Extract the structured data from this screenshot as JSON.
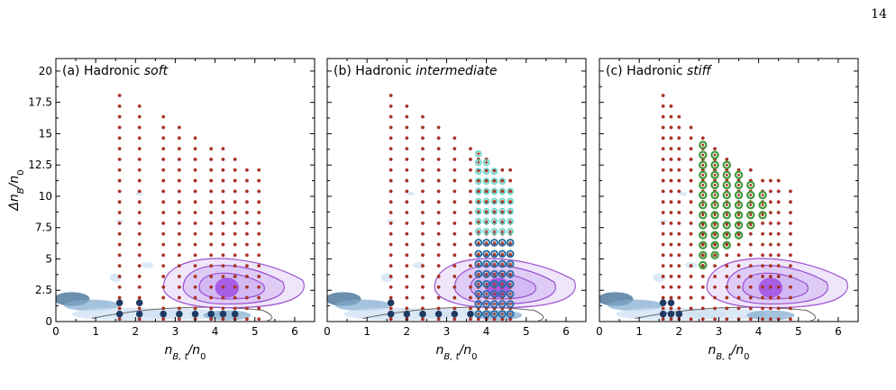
{
  "page_number": "14",
  "colors": {
    "tov_point": "#a83224",
    "hist_light": "#cfe2f3",
    "hist_dark": "#2c5f8a",
    "contour_purple": "#9b4fd0",
    "fill_purple": "#c7a6ef",
    "core_purple": "#9a3fe0",
    "marker_cyan": "#5fd3c7",
    "marker_blue": "#2e6fa5",
    "marker_green": "#3f9a3a",
    "marker_navy": "#1f3b63",
    "gray_contour": "#666666"
  },
  "chart_data": [
    {
      "type": "scatter",
      "panel": "a",
      "title_prefix": "(a) Hadronic ",
      "title_em": "soft",
      "xlabel": "n_{B,t}/n_0",
      "ylabel": "Δn_B/n_0",
      "xlim": [
        0,
        6.5
      ],
      "ylim": [
        0,
        21
      ],
      "xticks": [
        0,
        1,
        2,
        3,
        4,
        5,
        6
      ],
      "yticks": [
        0,
        2.5,
        5,
        7.5,
        10,
        12.5,
        15,
        17.5,
        20
      ],
      "ytick_labels": [
        "0",
        "2.5",
        "5",
        "7.5",
        "10",
        "12.5",
        "15",
        "17.5",
        "20"
      ],
      "grid_columns": [
        {
          "x": 1.6,
          "ymax": 18.6
        },
        {
          "x": 2.1,
          "ymax": 17.8
        },
        {
          "x": 2.7,
          "ymax": 16.8
        },
        {
          "x": 3.1,
          "ymax": 16.0
        },
        {
          "x": 3.5,
          "ymax": 15.2
        },
        {
          "x": 3.9,
          "ymax": 14.5
        },
        {
          "x": 4.2,
          "ymax": 13.8
        },
        {
          "x": 4.5,
          "ymax": 13.2
        },
        {
          "x": 4.8,
          "ymax": 12.7
        },
        {
          "x": 5.1,
          "ymax": 12.3
        }
      ],
      "grid_ystep": 0.85,
      "highlight": [
        {
          "style": "navy",
          "x": 1.6,
          "ylist": [
            0.6,
            1.5
          ]
        },
        {
          "style": "navy",
          "x": 2.1,
          "ylist": [
            0.6,
            1.5
          ]
        },
        {
          "style": "navy",
          "x": 2.7,
          "ylist": [
            0.6
          ]
        },
        {
          "style": "navy",
          "x": 3.1,
          "ylist": [
            0.6
          ]
        },
        {
          "style": "navy",
          "x": 3.5,
          "ylist": [
            0.6
          ]
        },
        {
          "style": "navy",
          "x": 3.9,
          "ylist": [
            0.6
          ]
        },
        {
          "style": "navy",
          "x": 4.2,
          "ylist": [
            0.6
          ]
        },
        {
          "style": "navy",
          "x": 4.5,
          "ylist": [
            0.6
          ]
        }
      ]
    },
    {
      "type": "scatter",
      "panel": "b",
      "title_prefix": "(b) Hadronic ",
      "title_em": "intermediate",
      "xlabel": "n_{B,t}/n_0",
      "ylabel": "",
      "xlim": [
        0,
        6.5
      ],
      "ylim": [
        0,
        21
      ],
      "xticks": [
        0,
        1,
        2,
        3,
        4,
        5,
        6
      ],
      "yticks": [
        0,
        2.5,
        5,
        7.5,
        10,
        12.5,
        15,
        17.5,
        20
      ],
      "grid_columns": [
        {
          "x": 1.6,
          "ymax": 18.6
        },
        {
          "x": 2.0,
          "ymax": 17.6
        },
        {
          "x": 2.4,
          "ymax": 16.7
        },
        {
          "x": 2.8,
          "ymax": 15.9
        },
        {
          "x": 3.2,
          "ymax": 15.0
        },
        {
          "x": 3.6,
          "ymax": 14.2
        },
        {
          "x": 3.8,
          "ymax": 13.5
        },
        {
          "x": 4.0,
          "ymax": 13.0
        },
        {
          "x": 4.2,
          "ymax": 12.7
        },
        {
          "x": 4.4,
          "ymax": 12.4
        },
        {
          "x": 4.6,
          "ymax": 12.1
        }
      ],
      "grid_ystep": 0.85,
      "highlight": [
        {
          "style": "cyan",
          "x": 3.8,
          "ylist": [
            7.2,
            8.0,
            8.8,
            9.6,
            10.4,
            11.2,
            12.0,
            12.7,
            13.4
          ]
        },
        {
          "style": "cyan",
          "x": 4.0,
          "ylist": [
            7.2,
            8.0,
            8.8,
            9.6,
            10.4,
            11.2,
            12.0,
            12.7
          ]
        },
        {
          "style": "cyan",
          "x": 4.2,
          "ylist": [
            7.2,
            8.0,
            8.8,
            9.6,
            10.4,
            11.2,
            12.0
          ]
        },
        {
          "style": "cyan",
          "x": 4.4,
          "ylist": [
            7.2,
            8.0,
            8.8,
            9.6,
            10.4,
            11.2
          ]
        },
        {
          "style": "cyan",
          "x": 4.6,
          "ylist": [
            7.2,
            8.0,
            8.8,
            9.6,
            10.4
          ]
        },
        {
          "style": "blue",
          "x": 3.8,
          "ylist": [
            0.6,
            1.4,
            2.2,
            3.0,
            3.8,
            4.6,
            5.4,
            6.3
          ]
        },
        {
          "style": "blue",
          "x": 4.0,
          "ylist": [
            0.6,
            1.4,
            2.2,
            3.0,
            3.8,
            4.6,
            5.4,
            6.3
          ]
        },
        {
          "style": "blue",
          "x": 4.2,
          "ylist": [
            0.6,
            1.4,
            2.2,
            3.0,
            3.8,
            4.6,
            5.4,
            6.3
          ]
        },
        {
          "style": "blue",
          "x": 4.4,
          "ylist": [
            0.6,
            1.4,
            2.2,
            3.0,
            3.8,
            4.6,
            5.4,
            6.3
          ]
        },
        {
          "style": "blue",
          "x": 4.6,
          "ylist": [
            0.6,
            1.4,
            2.2,
            3.0,
            3.8,
            4.6,
            5.4,
            6.3
          ]
        },
        {
          "style": "navy",
          "x": 1.6,
          "ylist": [
            0.6,
            1.5
          ]
        },
        {
          "style": "navy",
          "x": 2.0,
          "ylist": [
            0.6
          ]
        },
        {
          "style": "navy",
          "x": 2.4,
          "ylist": [
            0.6
          ]
        },
        {
          "style": "navy",
          "x": 2.8,
          "ylist": [
            0.6
          ]
        },
        {
          "style": "navy",
          "x": 3.2,
          "ylist": [
            0.6
          ]
        },
        {
          "style": "navy",
          "x": 3.6,
          "ylist": [
            0.6
          ]
        }
      ]
    },
    {
      "type": "scatter",
      "panel": "c",
      "title_prefix": "(c) Hadronic ",
      "title_em": "stiff",
      "xlabel": "n_{B,t}/n_0",
      "ylabel": "",
      "xlim": [
        0,
        6.5
      ],
      "ylim": [
        0,
        21
      ],
      "xticks": [
        0,
        1,
        2,
        3,
        4,
        5,
        6
      ],
      "yticks": [
        0,
        2.5,
        5,
        7.5,
        10,
        12.5,
        15,
        17.5,
        20
      ],
      "grid_columns": [
        {
          "x": 1.6,
          "ymax": 18.6
        },
        {
          "x": 1.8,
          "ymax": 17.6
        },
        {
          "x": 2.0,
          "ymax": 16.7
        },
        {
          "x": 2.3,
          "ymax": 15.9
        },
        {
          "x": 2.6,
          "ymax": 14.8
        },
        {
          "x": 2.9,
          "ymax": 14.0
        },
        {
          "x": 3.2,
          "ymax": 13.3
        },
        {
          "x": 3.5,
          "ymax": 12.8
        },
        {
          "x": 3.8,
          "ymax": 12.3
        },
        {
          "x": 4.1,
          "ymax": 11.9
        },
        {
          "x": 4.3,
          "ymax": 11.6
        },
        {
          "x": 4.5,
          "ymax": 11.4
        },
        {
          "x": 4.8,
          "ymax": 11.2
        }
      ],
      "grid_ystep": 0.85,
      "highlight": [
        {
          "style": "green",
          "x": 2.6,
          "ylist": [
            4.5,
            5.3,
            6.1,
            6.9,
            7.7,
            8.5,
            9.3,
            10.1,
            10.9,
            11.7,
            12.5,
            13.3,
            14.1
          ]
        },
        {
          "style": "green",
          "x": 2.9,
          "ylist": [
            5.3,
            6.1,
            6.9,
            7.7,
            8.5,
            9.3,
            10.1,
            10.9,
            11.7,
            12.5,
            13.3
          ]
        },
        {
          "style": "green",
          "x": 3.2,
          "ylist": [
            6.1,
            6.9,
            7.7,
            8.5,
            9.3,
            10.1,
            10.9,
            11.7,
            12.5
          ]
        },
        {
          "style": "green",
          "x": 3.5,
          "ylist": [
            6.9,
            7.7,
            8.5,
            9.3,
            10.1,
            10.9,
            11.7
          ]
        },
        {
          "style": "green",
          "x": 3.8,
          "ylist": [
            7.7,
            8.5,
            9.3,
            10.1,
            10.9
          ]
        },
        {
          "style": "green",
          "x": 4.1,
          "ylist": [
            8.5,
            9.3,
            10.1
          ]
        },
        {
          "style": "navy",
          "x": 1.6,
          "ylist": [
            0.6,
            1.5
          ]
        },
        {
          "style": "navy",
          "x": 1.8,
          "ylist": [
            0.6,
            1.5
          ]
        },
        {
          "style": "navy",
          "x": 2.0,
          "ylist": [
            0.6
          ]
        }
      ]
    }
  ],
  "density_blobs": [
    {
      "x": 0.4,
      "y": 1.8,
      "rx": 0.45,
      "ry": 0.55,
      "shade": "dark"
    },
    {
      "x": 0.9,
      "y": 1.3,
      "rx": 0.7,
      "ry": 0.45,
      "shade": "mid"
    },
    {
      "x": 1.8,
      "y": 0.6,
      "rx": 1.4,
      "ry": 0.5,
      "shade": "light"
    },
    {
      "x": 3.2,
      "y": 0.6,
      "rx": 1.0,
      "ry": 0.45,
      "shade": "light"
    },
    {
      "x": 4.3,
      "y": 0.5,
      "rx": 0.6,
      "ry": 0.4,
      "shade": "mid"
    },
    {
      "x": 1.5,
      "y": 3.5,
      "rx": 0.15,
      "ry": 0.35,
      "shade": "light"
    },
    {
      "x": 2.3,
      "y": 4.5,
      "rx": 0.15,
      "ry": 0.25,
      "shade": "light"
    },
    {
      "x": 2.1,
      "y": 10.2,
      "rx": 0.1,
      "ry": 0.15,
      "shade": "light"
    },
    {
      "x": 1.6,
      "y": 8.0,
      "rx": 0.1,
      "ry": 0.15,
      "shade": "light"
    }
  ],
  "posterior": {
    "center_x": 4.3,
    "center_y": 2.7,
    "contours": [
      {
        "rx_left": 1.6,
        "rx_right": 1.9,
        "ry_top": 3.0,
        "ry_bot": 1.6
      },
      {
        "rx_left": 1.1,
        "rx_right": 1.4,
        "ry_top": 2.3,
        "ry_bot": 1.3
      },
      {
        "rx_left": 0.7,
        "rx_right": 0.9,
        "ry_top": 1.5,
        "ry_bot": 0.9
      }
    ],
    "core": {
      "rx": 0.3,
      "ry": 0.8
    }
  }
}
